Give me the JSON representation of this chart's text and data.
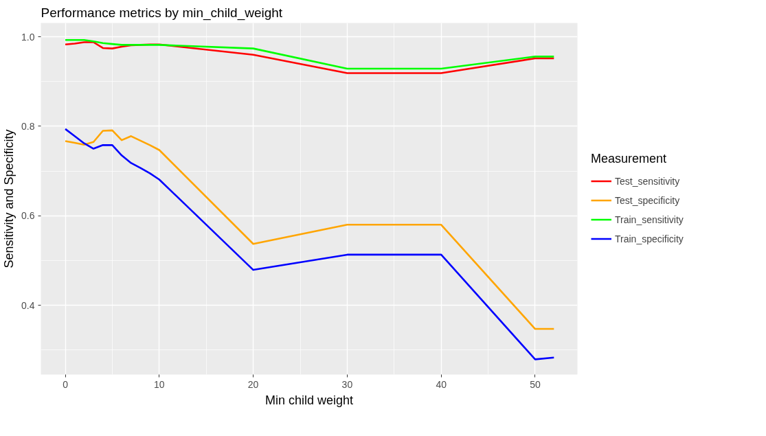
{
  "chart_data": {
    "type": "line",
    "title": "Performance metrics by min_child_weight",
    "xlabel": "Min child weight",
    "ylabel": "Sensitivity and Specificity",
    "legend_title": "Measurement",
    "x": [
      0,
      1,
      2,
      3,
      4,
      5,
      6,
      7,
      8,
      9,
      10,
      20,
      30,
      40,
      50,
      52
    ],
    "series": [
      {
        "name": "Test_sensitivity",
        "color": "#ff0000",
        "values": [
          0.983,
          0.985,
          0.988,
          0.988,
          0.975,
          0.974,
          0.978,
          0.981,
          0.982,
          0.983,
          0.983,
          0.96,
          0.919,
          0.919,
          0.952,
          0.952
        ]
      },
      {
        "name": "Test_specificity",
        "color": "#ffa500",
        "values": [
          0.767,
          0.763,
          0.759,
          0.765,
          0.79,
          0.791,
          0.769,
          0.778,
          0.768,
          0.758,
          0.747,
          0.537,
          0.58,
          0.58,
          0.347,
          0.347
        ]
      },
      {
        "name": "Train_sensitivity",
        "color": "#00ff00",
        "values": [
          0.993,
          0.993,
          0.993,
          0.99,
          0.986,
          0.984,
          0.982,
          0.982,
          0.982,
          0.982,
          0.982,
          0.974,
          0.929,
          0.929,
          0.956,
          0.956
        ]
      },
      {
        "name": "Train_specificity",
        "color": "#0000ff",
        "values": [
          0.794,
          0.778,
          0.762,
          0.75,
          0.758,
          0.758,
          0.735,
          0.718,
          0.707,
          0.695,
          0.681,
          0.479,
          0.513,
          0.513,
          0.279,
          0.283
        ]
      }
    ],
    "xlim": [
      -2.6,
      54.5
    ],
    "ylim": [
      0.245,
      1.031
    ],
    "xticks": [
      0,
      10,
      20,
      30,
      40,
      50
    ],
    "yticks": [
      {
        "value": 0.4,
        "label": "0.4"
      },
      {
        "value": 0.6,
        "label": "0.6"
      },
      {
        "value": 0.8,
        "label": "0.8"
      },
      {
        "value": 1.0,
        "label": "1.0"
      }
    ],
    "grid": true,
    "legend": "right",
    "marker": "none",
    "line_style": "solid"
  }
}
